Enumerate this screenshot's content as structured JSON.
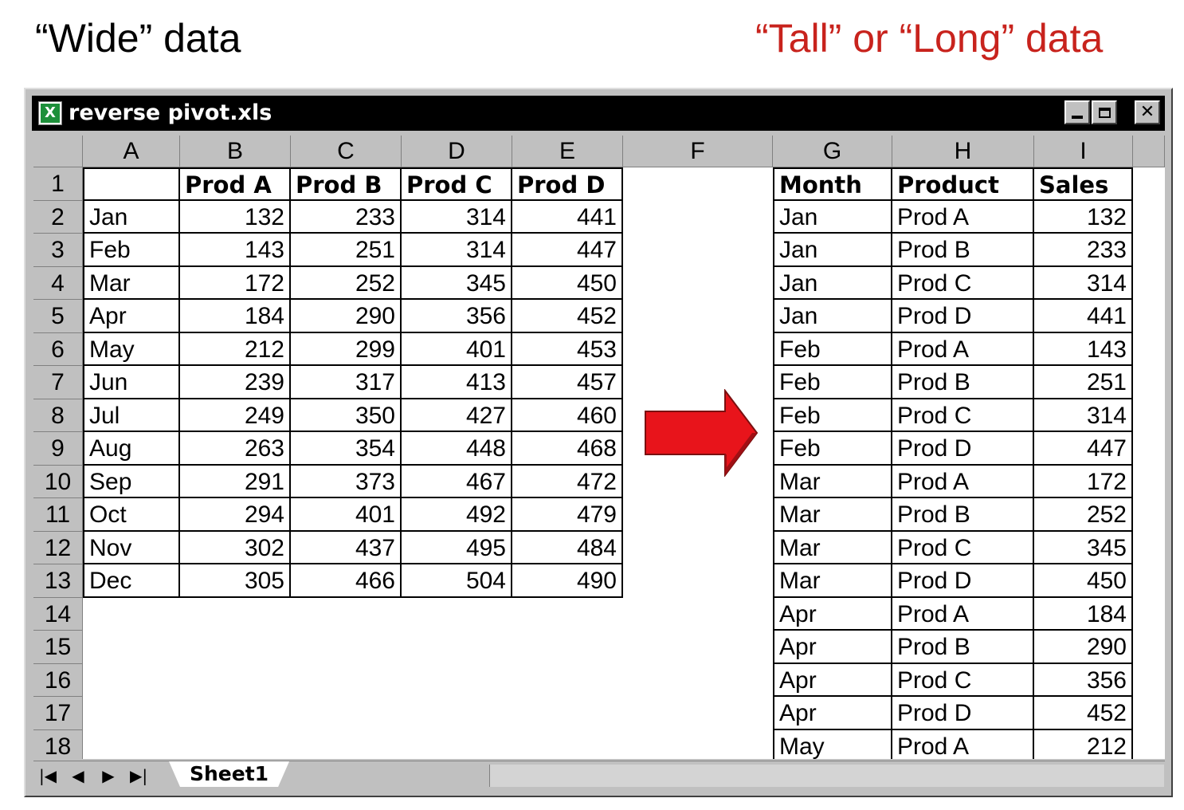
{
  "captions": {
    "left": "“Wide” data",
    "right": "“Tall” or “Long” data"
  },
  "colors": {
    "right_caption": "#c8231d",
    "arrow": "#e8141b",
    "title_bar": "#000000",
    "chrome": "#c0c0c0"
  },
  "window": {
    "title": "reverse pivot.xls",
    "icon": "excel-sheet-icon",
    "buttons": {
      "minimize": "minimize-icon",
      "maximize": "maximize-icon",
      "close": "close-icon"
    }
  },
  "column_headers": [
    "A",
    "B",
    "C",
    "D",
    "E",
    "F",
    "G",
    "H",
    "I"
  ],
  "row_numbers": [
    "1",
    "2",
    "3",
    "4",
    "5",
    "6",
    "7",
    "8",
    "9",
    "10",
    "11",
    "12",
    "13",
    "14",
    "15",
    "16",
    "17",
    "18"
  ],
  "wide_table": {
    "header": [
      "",
      "Prod A",
      "Prod B",
      "Prod C",
      "Prod D"
    ],
    "rows": [
      [
        "Jan",
        "132",
        "233",
        "314",
        "441"
      ],
      [
        "Feb",
        "143",
        "251",
        "314",
        "447"
      ],
      [
        "Mar",
        "172",
        "252",
        "345",
        "450"
      ],
      [
        "Apr",
        "184",
        "290",
        "356",
        "452"
      ],
      [
        "May",
        "212",
        "299",
        "401",
        "453"
      ],
      [
        "Jun",
        "239",
        "317",
        "413",
        "457"
      ],
      [
        "Jul",
        "249",
        "350",
        "427",
        "460"
      ],
      [
        "Aug",
        "263",
        "354",
        "448",
        "468"
      ],
      [
        "Sep",
        "291",
        "373",
        "467",
        "472"
      ],
      [
        "Oct",
        "294",
        "401",
        "492",
        "479"
      ],
      [
        "Nov",
        "302",
        "437",
        "495",
        "484"
      ],
      [
        "Dec",
        "305",
        "466",
        "504",
        "490"
      ]
    ]
  },
  "long_table": {
    "header": [
      "Month",
      "Product",
      "Sales"
    ],
    "rows": [
      [
        "Jan",
        "Prod A",
        "132"
      ],
      [
        "Jan",
        "Prod B",
        "233"
      ],
      [
        "Jan",
        "Prod C",
        "314"
      ],
      [
        "Jan",
        "Prod D",
        "441"
      ],
      [
        "Feb",
        "Prod A",
        "143"
      ],
      [
        "Feb",
        "Prod B",
        "251"
      ],
      [
        "Feb",
        "Prod C",
        "314"
      ],
      [
        "Feb",
        "Prod D",
        "447"
      ],
      [
        "Mar",
        "Prod A",
        "172"
      ],
      [
        "Mar",
        "Prod B",
        "252"
      ],
      [
        "Mar",
        "Prod C",
        "345"
      ],
      [
        "Mar",
        "Prod D",
        "450"
      ],
      [
        "Apr",
        "Prod A",
        "184"
      ],
      [
        "Apr",
        "Prod B",
        "290"
      ],
      [
        "Apr",
        "Prod C",
        "356"
      ],
      [
        "Apr",
        "Prod D",
        "452"
      ],
      [
        "May",
        "Prod A",
        "212"
      ]
    ]
  },
  "arrow_icon": "right-arrow-icon",
  "sheet_tabs": [
    "Sheet1"
  ],
  "tab_nav": [
    "first-sheet-icon",
    "prev-sheet-icon",
    "next-sheet-icon",
    "last-sheet-icon"
  ]
}
